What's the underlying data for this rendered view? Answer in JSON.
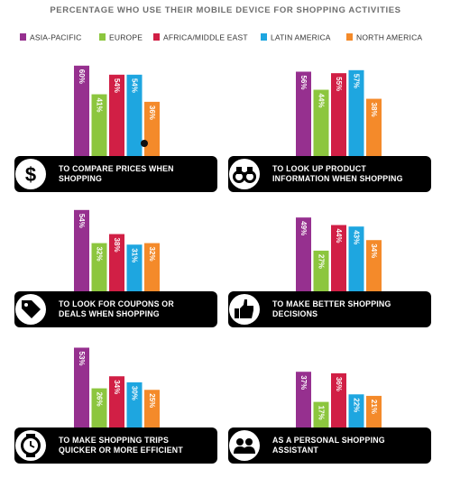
{
  "title": "PERCENTAGE WHO USE THEIR MOBILE DEVICE FOR SHOPPING ACTIVITIES",
  "legend": [
    {
      "name": "ASIA-PACIFIC",
      "color": "#96308f"
    },
    {
      "name": "EUROPE",
      "color": "#8cc63e"
    },
    {
      "name": "AFRICA/MIDDLE EAST",
      "color": "#d11f45"
    },
    {
      "name": "LATIN AMERICA",
      "color": "#1ea6e0"
    },
    {
      "name": "NORTH AMERICA",
      "color": "#f48a2a"
    }
  ],
  "panels": [
    {
      "label": "TO COMPARE PRICES WHEN SHOPPING",
      "icon": "dollar-icon",
      "lines": [
        "TO COMPARE PRICES WHEN",
        "SHOPPING"
      ]
    },
    {
      "label": "TO LOOK UP PRODUCT INFORMATION WHEN SHOPPING",
      "icon": "binoculars-icon",
      "lines": [
        "TO LOOK UP PRODUCT",
        "INFORMATION WHEN SHOPPING"
      ]
    },
    {
      "label": "TO LOOK FOR COUPONS OR DEALS WHEN SHOPPING",
      "icon": "tag-icon",
      "lines": [
        "TO LOOK FOR COUPONS OR",
        "DEALS WHEN SHOPPING"
      ]
    },
    {
      "label": "TO MAKE BETTER SHOPPING DECISIONS",
      "icon": "thumbs-up-icon",
      "lines": [
        "TO MAKE BETTER SHOPPING",
        "DECISIONS"
      ]
    },
    {
      "label": "TO MAKE SHOPPING TRIPS QUICKER OR MORE EFFICIENT",
      "icon": "stopwatch-icon",
      "lines": [
        "TO MAKE SHOPPING TRIPS",
        "QUICKER OR MORE EFFICIENT"
      ]
    },
    {
      "label": "AS A PERSONAL SHOPPING ASSISTANT",
      "icon": "people-icon",
      "lines": [
        "AS A PERSONAL SHOPPING",
        "ASSISTANT"
      ]
    }
  ],
  "chart_data": {
    "type": "bar",
    "title": "PERCENTAGE WHO USE THEIR MOBILE DEVICE FOR SHOPPING ACTIVITIES",
    "unit": "%",
    "ylim": [
      0,
      65
    ],
    "grid": false,
    "legend_placement": "top",
    "categories": [
      "TO COMPARE PRICES WHEN SHOPPING",
      "TO LOOK UP PRODUCT INFORMATION WHEN SHOPPING",
      "TO LOOK FOR COUPONS OR DEALS WHEN SHOPPING",
      "TO MAKE BETTER SHOPPING DECISIONS",
      "TO MAKE SHOPPING TRIPS QUICKER OR MORE EFFICIENT",
      "AS A PERSONAL SHOPPING ASSISTANT"
    ],
    "series": [
      {
        "name": "ASIA-PACIFIC",
        "values": [
          60,
          56,
          54,
          49,
          53,
          37
        ]
      },
      {
        "name": "EUROPE",
        "values": [
          41,
          44,
          32,
          27,
          26,
          17
        ]
      },
      {
        "name": "AFRICA/MIDDLE EAST",
        "values": [
          54,
          55,
          38,
          44,
          34,
          36
        ]
      },
      {
        "name": "LATIN AMERICA",
        "values": [
          54,
          57,
          31,
          43,
          30,
          22
        ]
      },
      {
        "name": "NORTH AMERICA",
        "values": [
          36,
          38,
          32,
          34,
          25,
          21
        ]
      }
    ]
  }
}
